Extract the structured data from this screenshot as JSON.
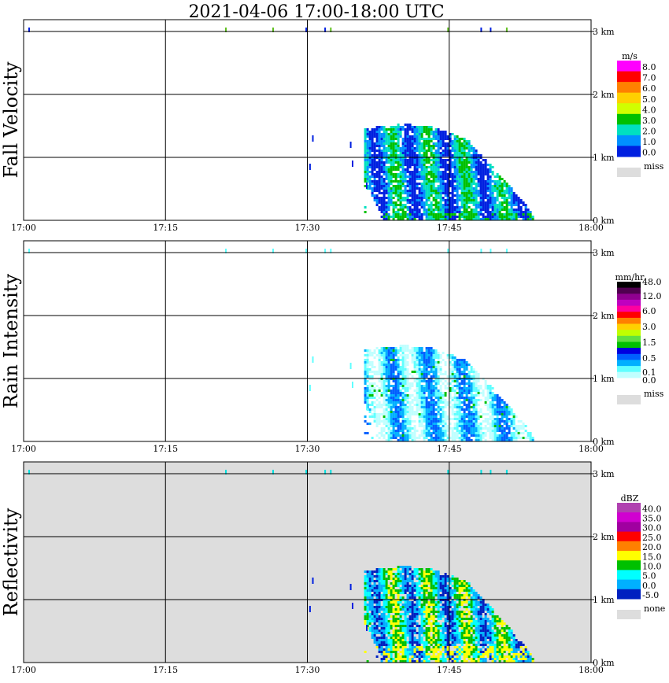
{
  "title": "2021-04-06   17:00-18:00 UTC",
  "x_ticks": [
    "17:00",
    "17:15",
    "17:30",
    "17:45",
    "18:00"
  ],
  "height_ticks": [
    "0 km",
    "1 km",
    "2 km",
    "3 km"
  ],
  "colors": {
    "grey_background": "#dddddd",
    "missing": "#dddddd"
  },
  "chart_data": [
    {
      "type": "heatmap",
      "name": "Fall Velocity",
      "x_range": [
        "17:00",
        "18:00"
      ],
      "y_range_km": [
        0,
        3.05
      ],
      "background": "white",
      "legend": {
        "unit": "m/s",
        "labels": [
          "8.0",
          "7.0",
          "6.0",
          "5.0",
          "4.0",
          "3.0",
          "2.0",
          "1.0",
          "0.0"
        ],
        "colors": [
          "#ff00ff",
          "#ff0000",
          "#ff8000",
          "#ffd000",
          "#d0ff00",
          "#00c000",
          "#00e0c0",
          "#0090ff",
          "#0020e0"
        ],
        "missing_label": "miss"
      },
      "echo_region": {
        "onset": "17:36",
        "end": "17:54",
        "top_km": [
          [
            36,
            0.0
          ],
          [
            39,
            1.45
          ],
          [
            42,
            1.5
          ],
          [
            45,
            1.55
          ],
          [
            48,
            1.5
          ],
          [
            51,
            1.3
          ],
          [
            53,
            0.6
          ],
          [
            54,
            0.2
          ]
        ]
      }
    },
    {
      "type": "heatmap",
      "name": "Rain Intensity",
      "x_range": [
        "17:00",
        "18:00"
      ],
      "y_range_km": [
        0,
        3.05
      ],
      "background": "white",
      "legend": {
        "unit": "mm/hr",
        "labels": [
          "48.0",
          "12.0",
          "6.0",
          "3.0",
          "1.5",
          "0.5",
          "0.1",
          "0.0"
        ],
        "colors": [
          "#000000",
          "#500050",
          "#900090",
          "#c000c0",
          "#ff00a0",
          "#ff0000",
          "#ff8000",
          "#ffd000",
          "#c0ff00",
          "#60e040",
          "#00c000",
          "#0000e0",
          "#0060ff",
          "#00b0ff",
          "#60ffff",
          "#c0ffff",
          "#ffffff"
        ],
        "missing_label": "miss"
      },
      "echo_region": {
        "onset": "17:36",
        "end": "17:54",
        "top_km": [
          [
            36,
            0.0
          ],
          [
            39,
            1.45
          ],
          [
            42,
            1.5
          ],
          [
            45,
            1.55
          ],
          [
            48,
            1.5
          ],
          [
            51,
            1.3
          ],
          [
            53,
            0.6
          ],
          [
            54,
            0.2
          ]
        ]
      }
    },
    {
      "type": "heatmap",
      "name": "Reflectivity",
      "x_range": [
        "17:00",
        "18:00"
      ],
      "y_range_km": [
        0,
        3.05
      ],
      "background": "grey",
      "legend": {
        "unit": "dBZ",
        "labels": [
          "40.0",
          "35.0",
          "30.0",
          "25.0",
          "20.0",
          "15.0",
          "10.0",
          "5.0",
          "0.0",
          "-5.0"
        ],
        "colors": [
          "#b040b0",
          "#d000d0",
          "#a000a0",
          "#ff0000",
          "#ff8000",
          "#ffff00",
          "#00c000",
          "#00ffff",
          "#00b0ff",
          "#0020c0"
        ],
        "missing_label": "none"
      },
      "echo_region": {
        "onset": "17:36",
        "end": "17:54",
        "top_km": [
          [
            36,
            0.0
          ],
          [
            39,
            1.45
          ],
          [
            42,
            1.5
          ],
          [
            45,
            1.55
          ],
          [
            48,
            1.5
          ],
          [
            51,
            1.3
          ],
          [
            53,
            0.6
          ],
          [
            54,
            0.2
          ]
        ]
      }
    }
  ]
}
